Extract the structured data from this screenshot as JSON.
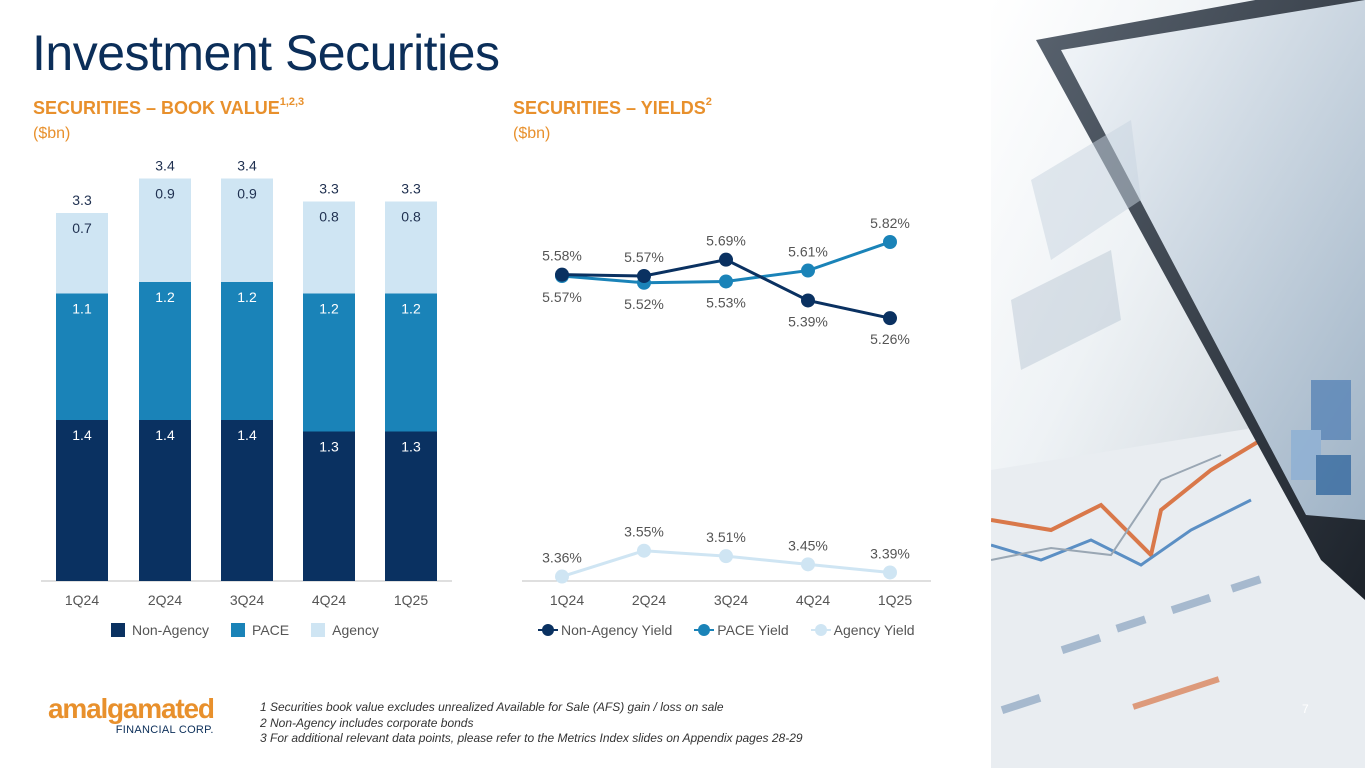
{
  "page": {
    "title": "Investment Securities",
    "page_number": "7"
  },
  "left_section": {
    "heading": "SECURITIES – BOOK VALUE",
    "superscript": "1,2,3",
    "unit": "($bn)"
  },
  "right_section": {
    "heading": "SECURITIES – YIELDS",
    "superscript": "2",
    "unit": "($bn)"
  },
  "footnotes": [
    "1 Securities book value excludes unrealized Available for Sale (AFS) gain / loss on sale",
    "2 Non-Agency includes corporate bonds",
    "3 For additional relevant data points, please refer to the Metrics Index slides on Appendix pages 28-29"
  ],
  "logo": {
    "name": "amalgamated",
    "sub": "FINANCIAL CORP."
  },
  "colors": {
    "orange": "#e8902c",
    "navy": "#0b2e59",
    "non_agency": "#0a3161",
    "pace": "#1a83b8",
    "agency": "#cfe5f3"
  },
  "chart_data": [
    {
      "type": "bar",
      "stacked": true,
      "title": "SECURITIES – BOOK VALUE",
      "categories": [
        "1Q24",
        "2Q24",
        "3Q24",
        "4Q24",
        "1Q25"
      ],
      "series": [
        {
          "name": "Non-Agency",
          "values": [
            1.4,
            1.4,
            1.4,
            1.3,
            1.3
          ],
          "labels": [
            "1.4",
            "1.4",
            "1.4",
            "1.3",
            "1.3"
          ]
        },
        {
          "name": "PACE",
          "values": [
            1.1,
            1.2,
            1.2,
            1.2,
            1.2
          ],
          "labels": [
            "1.1",
            "1.2",
            "1.2",
            "1.2",
            "1.2"
          ]
        },
        {
          "name": "Agency",
          "values": [
            0.7,
            0.9,
            0.9,
            0.8,
            0.8
          ],
          "labels": [
            "0.7",
            "0.9",
            "0.9",
            "0.8",
            "0.8"
          ]
        }
      ],
      "totals": [
        3.3,
        3.4,
        3.4,
        3.3,
        3.3
      ],
      "total_labels": [
        "3.3",
        "3.4",
        "3.4",
        "3.3",
        "3.3"
      ],
      "legend": [
        "Non-Agency",
        "PACE",
        "Agency"
      ],
      "ylim": [
        0,
        3.8
      ]
    },
    {
      "type": "line",
      "title": "SECURITIES – YIELDS",
      "categories": [
        "1Q24",
        "2Q24",
        "3Q24",
        "4Q24",
        "1Q25"
      ],
      "series": [
        {
          "name": "Non-Agency Yield",
          "values": [
            5.58,
            5.57,
            5.69,
            5.39,
            5.26
          ],
          "labels": [
            "5.58%",
            "5.57%",
            "5.69%",
            "5.39%",
            "5.26%"
          ]
        },
        {
          "name": "PACE Yield",
          "values": [
            5.57,
            5.52,
            5.53,
            5.61,
            5.82
          ],
          "labels": [
            "5.57%",
            "5.52%",
            "5.53%",
            "5.61%",
            "5.82%"
          ]
        },
        {
          "name": "Agency Yield",
          "values": [
            3.36,
            3.55,
            3.51,
            3.45,
            3.39
          ],
          "labels": [
            "3.36%",
            "3.55%",
            "3.51%",
            "3.45%",
            "3.39%"
          ]
        }
      ],
      "legend": [
        "Non-Agency Yield",
        "PACE Yield",
        "Agency Yield"
      ],
      "ylim": [
        1.0,
        6.5
      ]
    }
  ]
}
